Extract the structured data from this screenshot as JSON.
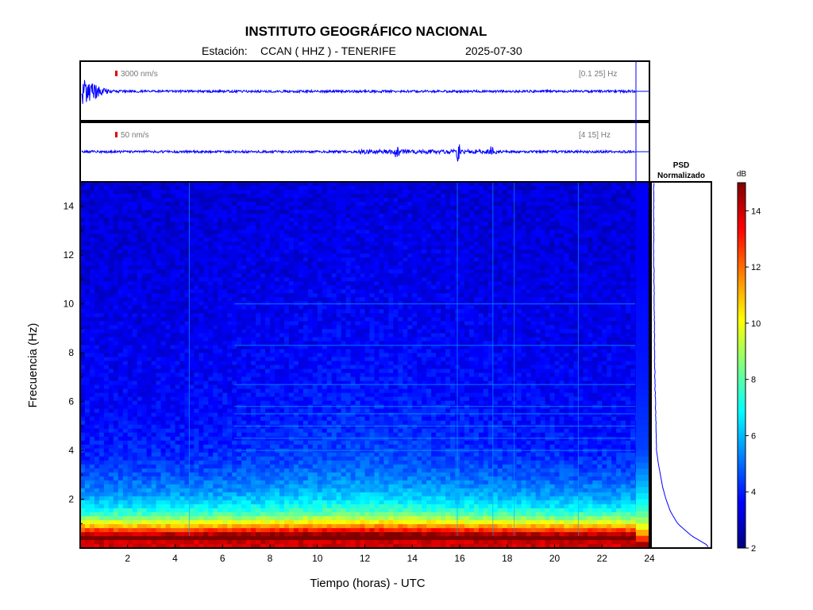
{
  "header": {
    "title": "INSTITUTO GEOGRÁFICO NACIONAL",
    "station_prefix": "Estación:",
    "station": "CCAN ( HHZ ) - TENERIFE",
    "date": "2025-07-30"
  },
  "traces": [
    {
      "scale_label": "3000 nm/s",
      "band_label": "[0.1 25] Hz"
    },
    {
      "scale_label": "50 nm/s",
      "band_label": "[4 15] Hz"
    }
  ],
  "psd": {
    "title_line1": "PSD",
    "title_line2": "Normalizado"
  },
  "colorbar": {
    "unit": "dB",
    "min": 2,
    "max": 15,
    "ticks": [
      "2",
      "4",
      "6",
      "8",
      "10",
      "12",
      "14"
    ]
  },
  "colors": {
    "trace": "#0000ff",
    "scale_marker": "#e00000",
    "frame": "#000000"
  },
  "chart_data": {
    "type": "heatmap",
    "xlabel": "Tiempo (horas) - UTC",
    "ylabel": "Frecuencia  (Hz)",
    "xlim": [
      0,
      24
    ],
    "ylim": [
      0,
      15
    ],
    "x_ticks": [
      "2",
      "4",
      "6",
      "8",
      "10",
      "12",
      "14",
      "16",
      "18",
      "20",
      "22",
      "24"
    ],
    "y_ticks": [
      "2",
      "4",
      "6",
      "8",
      "10",
      "12",
      "14"
    ],
    "colormap": "jet",
    "low_frequency_band_db": 14,
    "background_db_low_freq": 5,
    "background_db_high_freq": 3,
    "horizontal_lines_hz": [
      4.0,
      4.5,
      5.0,
      5.5,
      5.8,
      6.7,
      8.3,
      10.0
    ],
    "vertical_lines_h": [
      4.6,
      15.9,
      17.4,
      18.3,
      21.0
    ],
    "psd_normalized_profile": {
      "freq_hz": [
        0.1,
        0.5,
        1.0,
        1.5,
        2.0,
        2.5,
        3.0,
        3.5,
        4.0,
        5.0,
        6.0,
        7.0,
        8.0,
        10.0,
        12.0,
        15.0
      ],
      "value": [
        1.0,
        0.7,
        0.45,
        0.32,
        0.24,
        0.18,
        0.14,
        0.1,
        0.07,
        0.06,
        0.05,
        0.04,
        0.035,
        0.03,
        0.02,
        0.02
      ]
    }
  }
}
